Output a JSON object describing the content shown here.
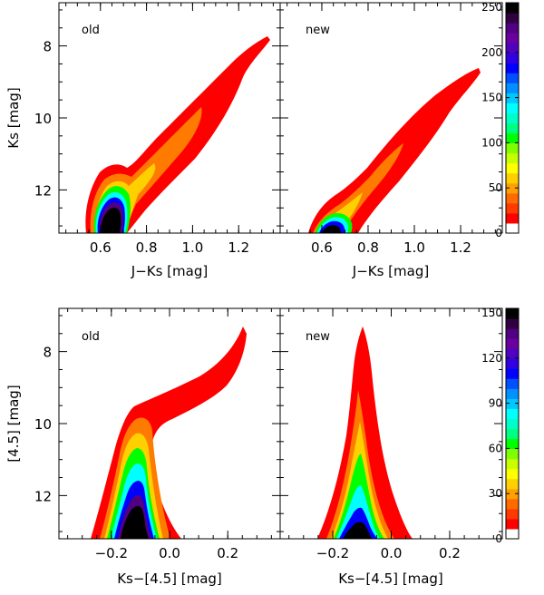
{
  "figure": {
    "description_none": ""
  },
  "chart_data": [
    {
      "type": "heatmap",
      "panel_label": "old",
      "xlabel": "J−Ks [mag]",
      "ylabel": "Ks [mag]",
      "xlim": [
        0.42,
        1.38
      ],
      "ylim": [
        13.2,
        6.8
      ],
      "xticks": [
        0.6,
        0.8,
        1.0,
        1.2
      ],
      "xtick_labels": [
        "0.6",
        "0.8",
        "1.0",
        "1.2"
      ],
      "yticks": [
        8,
        10,
        12
      ],
      "ytick_labels": [
        "8",
        "10",
        "12"
      ],
      "features": [
        {
          "x": 0.64,
          "y": 12.5,
          "level": 250
        },
        {
          "x": 0.66,
          "y": 11.5,
          "level": 60
        },
        {
          "x": 0.78,
          "y": 10.8,
          "level": 25
        },
        {
          "x": 0.95,
          "y": 9.6,
          "level": 15
        },
        {
          "x": 1.15,
          "y": 8.2,
          "level": 8
        },
        {
          "x": 1.3,
          "y": 7.3,
          "level": 5
        }
      ]
    },
    {
      "type": "heatmap",
      "panel_label": "new",
      "xlabel": "J−Ks [mag]",
      "ylabel": "",
      "xlim": [
        0.42,
        1.38
      ],
      "ylim": [
        13.2,
        6.8
      ],
      "xticks": [
        0.6,
        0.8,
        1.0,
        1.2
      ],
      "xtick_labels": [
        "0.6",
        "0.8",
        "1.0",
        "1.2"
      ],
      "yticks": [
        8,
        10,
        12
      ],
      "ytick_labels": [
        "",
        "",
        ""
      ],
      "features": [
        {
          "x": 0.7,
          "y": 13.0,
          "level": 250
        },
        {
          "x": 0.72,
          "y": 12.4,
          "level": 60
        },
        {
          "x": 0.85,
          "y": 11.2,
          "level": 25
        },
        {
          "x": 1.0,
          "y": 9.8,
          "level": 15
        },
        {
          "x": 1.2,
          "y": 8.3,
          "level": 6
        }
      ]
    },
    {
      "type": "heatmap",
      "panel_label": "old",
      "xlabel": "Ks−[4.5] [mag]",
      "ylabel": "[4.5] [mag]",
      "xlim": [
        -0.38,
        0.38
      ],
      "ylim": [
        13.2,
        6.8
      ],
      "xticks": [
        -0.2,
        0.0,
        0.2
      ],
      "xtick_labels": [
        "−0.2",
        "0.0",
        "0.2"
      ],
      "yticks": [
        8,
        10,
        12
      ],
      "ytick_labels": [
        "8",
        "10",
        "12"
      ],
      "features": [
        {
          "x": -0.08,
          "y": 12.6,
          "level": 150
        },
        {
          "x": -0.08,
          "y": 11.0,
          "level": 60
        },
        {
          "x": -0.06,
          "y": 10.0,
          "level": 20
        },
        {
          "x": 0.15,
          "y": 9.2,
          "level": 15
        },
        {
          "x": 0.25,
          "y": 7.8,
          "level": 8
        }
      ]
    },
    {
      "type": "heatmap",
      "panel_label": "new",
      "xlabel": "Ks−[4.5] [mag]",
      "ylabel": "",
      "xlim": [
        -0.38,
        0.38
      ],
      "ylim": [
        13.2,
        6.8
      ],
      "xticks": [
        -0.2,
        0.0,
        0.2
      ],
      "xtick_labels": [
        "−0.2",
        "0.0",
        "0.2"
      ],
      "yticks": [
        8,
        10,
        12
      ],
      "ytick_labels": [
        "",
        "",
        ""
      ],
      "features": [
        {
          "x": -0.08,
          "y": 12.8,
          "level": 150
        },
        {
          "x": -0.08,
          "y": 11.5,
          "level": 60
        },
        {
          "x": -0.08,
          "y": 10.0,
          "level": 25
        },
        {
          "x": -0.08,
          "y": 8.5,
          "level": 8
        }
      ]
    }
  ],
  "colorbars": [
    {
      "ticks": [
        0,
        50,
        100,
        150,
        200,
        250
      ],
      "tick_labels": [
        "0",
        "50",
        "100",
        "150",
        "200",
        "250"
      ],
      "max": 255
    },
    {
      "ticks": [
        0,
        30,
        60,
        90,
        120,
        150
      ],
      "tick_labels": [
        "0",
        "30",
        "60",
        "90",
        "120",
        "150"
      ],
      "max": 153
    }
  ],
  "colors": {
    "palette": [
      "#ffffff",
      "#ff0000",
      "#ff3a00",
      "#ff6a00",
      "#ffa000",
      "#ffd000",
      "#ffff00",
      "#c8ff00",
      "#80ff00",
      "#00ff00",
      "#00ff80",
      "#00ffc8",
      "#00ffff",
      "#00c8ff",
      "#0090ff",
      "#0050ff",
      "#0000ff",
      "#3000e0",
      "#5000c0",
      "#6a00a0",
      "#500080",
      "#300040",
      "#000000"
    ]
  }
}
